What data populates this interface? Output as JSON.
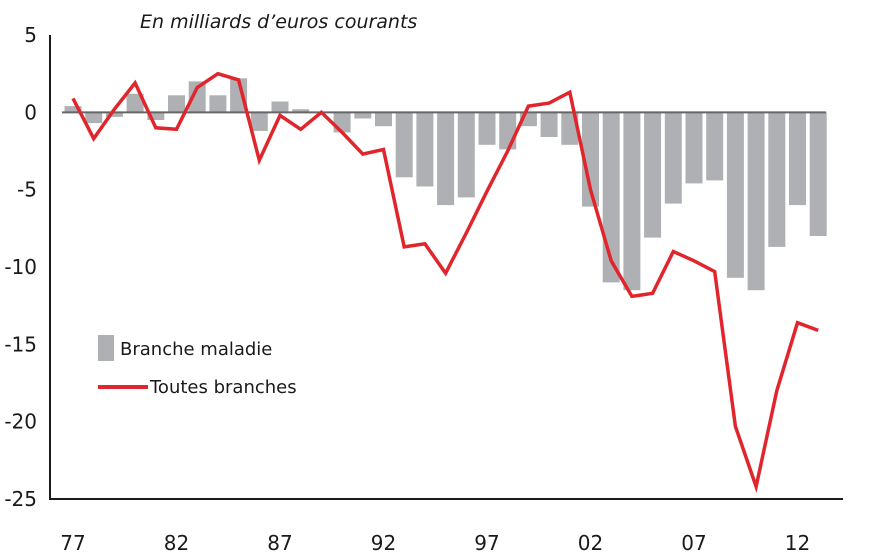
{
  "chart_data": {
    "type": "bar",
    "title": "",
    "subtitle": "En milliards d’euros courants",
    "xlabel": "",
    "ylabel": "",
    "ylim": [
      -25,
      5
    ],
    "yticks": [
      5,
      0,
      -5,
      -10,
      -15,
      -20,
      -25
    ],
    "ytick_labels": [
      "5",
      "0",
      "-5",
      "-10",
      "-15",
      "-20",
      "-25"
    ],
    "grid": false,
    "legend_position": "left-middle",
    "x": [
      1977,
      1978,
      1979,
      1980,
      1981,
      1982,
      1983,
      1984,
      1985,
      1986,
      1987,
      1988,
      1989,
      1990,
      1991,
      1992,
      1993,
      1994,
      1995,
      1996,
      1997,
      1998,
      1999,
      2000,
      2001,
      2002,
      2003,
      2004,
      2005,
      2006,
      2007,
      2008,
      2009,
      2010,
      2011,
      2012,
      2013
    ],
    "xticks": [
      1977,
      1982,
      1987,
      1992,
      1997,
      2002,
      2007,
      2012
    ],
    "xtick_labels": [
      "77",
      "82",
      "87",
      "92",
      "97",
      "02",
      "07",
      "12"
    ],
    "series": [
      {
        "name": "Branche maladie",
        "type": "bar",
        "color": "#aeb0b3",
        "values": [
          0.4,
          -0.7,
          -0.3,
          1.2,
          -0.5,
          1.1,
          2.0,
          1.1,
          2.2,
          -1.2,
          0.7,
          0.2,
          0.0,
          -1.3,
          -0.4,
          -0.9,
          -4.2,
          -4.8,
          -6.0,
          -5.5,
          -2.1,
          -2.4,
          -0.9,
          -1.6,
          -2.1,
          -6.1,
          -11.0,
          -11.5,
          -8.1,
          -5.9,
          -4.6,
          -4.4,
          -10.7,
          -11.5,
          -8.7,
          -6.0,
          -8.0
        ]
      },
      {
        "name": "Toutes branches",
        "type": "line",
        "color": "#e0262c",
        "values": [
          0.9,
          -1.7,
          0.2,
          1.9,
          -1.0,
          -1.1,
          1.6,
          2.5,
          2.1,
          -3.1,
          -0.2,
          -1.1,
          0.0,
          -1.3,
          -2.7,
          -2.4,
          -8.7,
          -8.5,
          -10.4,
          -7.8,
          -5.1,
          -2.5,
          0.4,
          0.6,
          1.3,
          -5.0,
          -9.6,
          -11.9,
          -11.7,
          -9.0,
          -9.6,
          -10.3,
          -20.3,
          -24.2,
          -18.0,
          -13.6,
          -14.1
        ]
      }
    ]
  }
}
